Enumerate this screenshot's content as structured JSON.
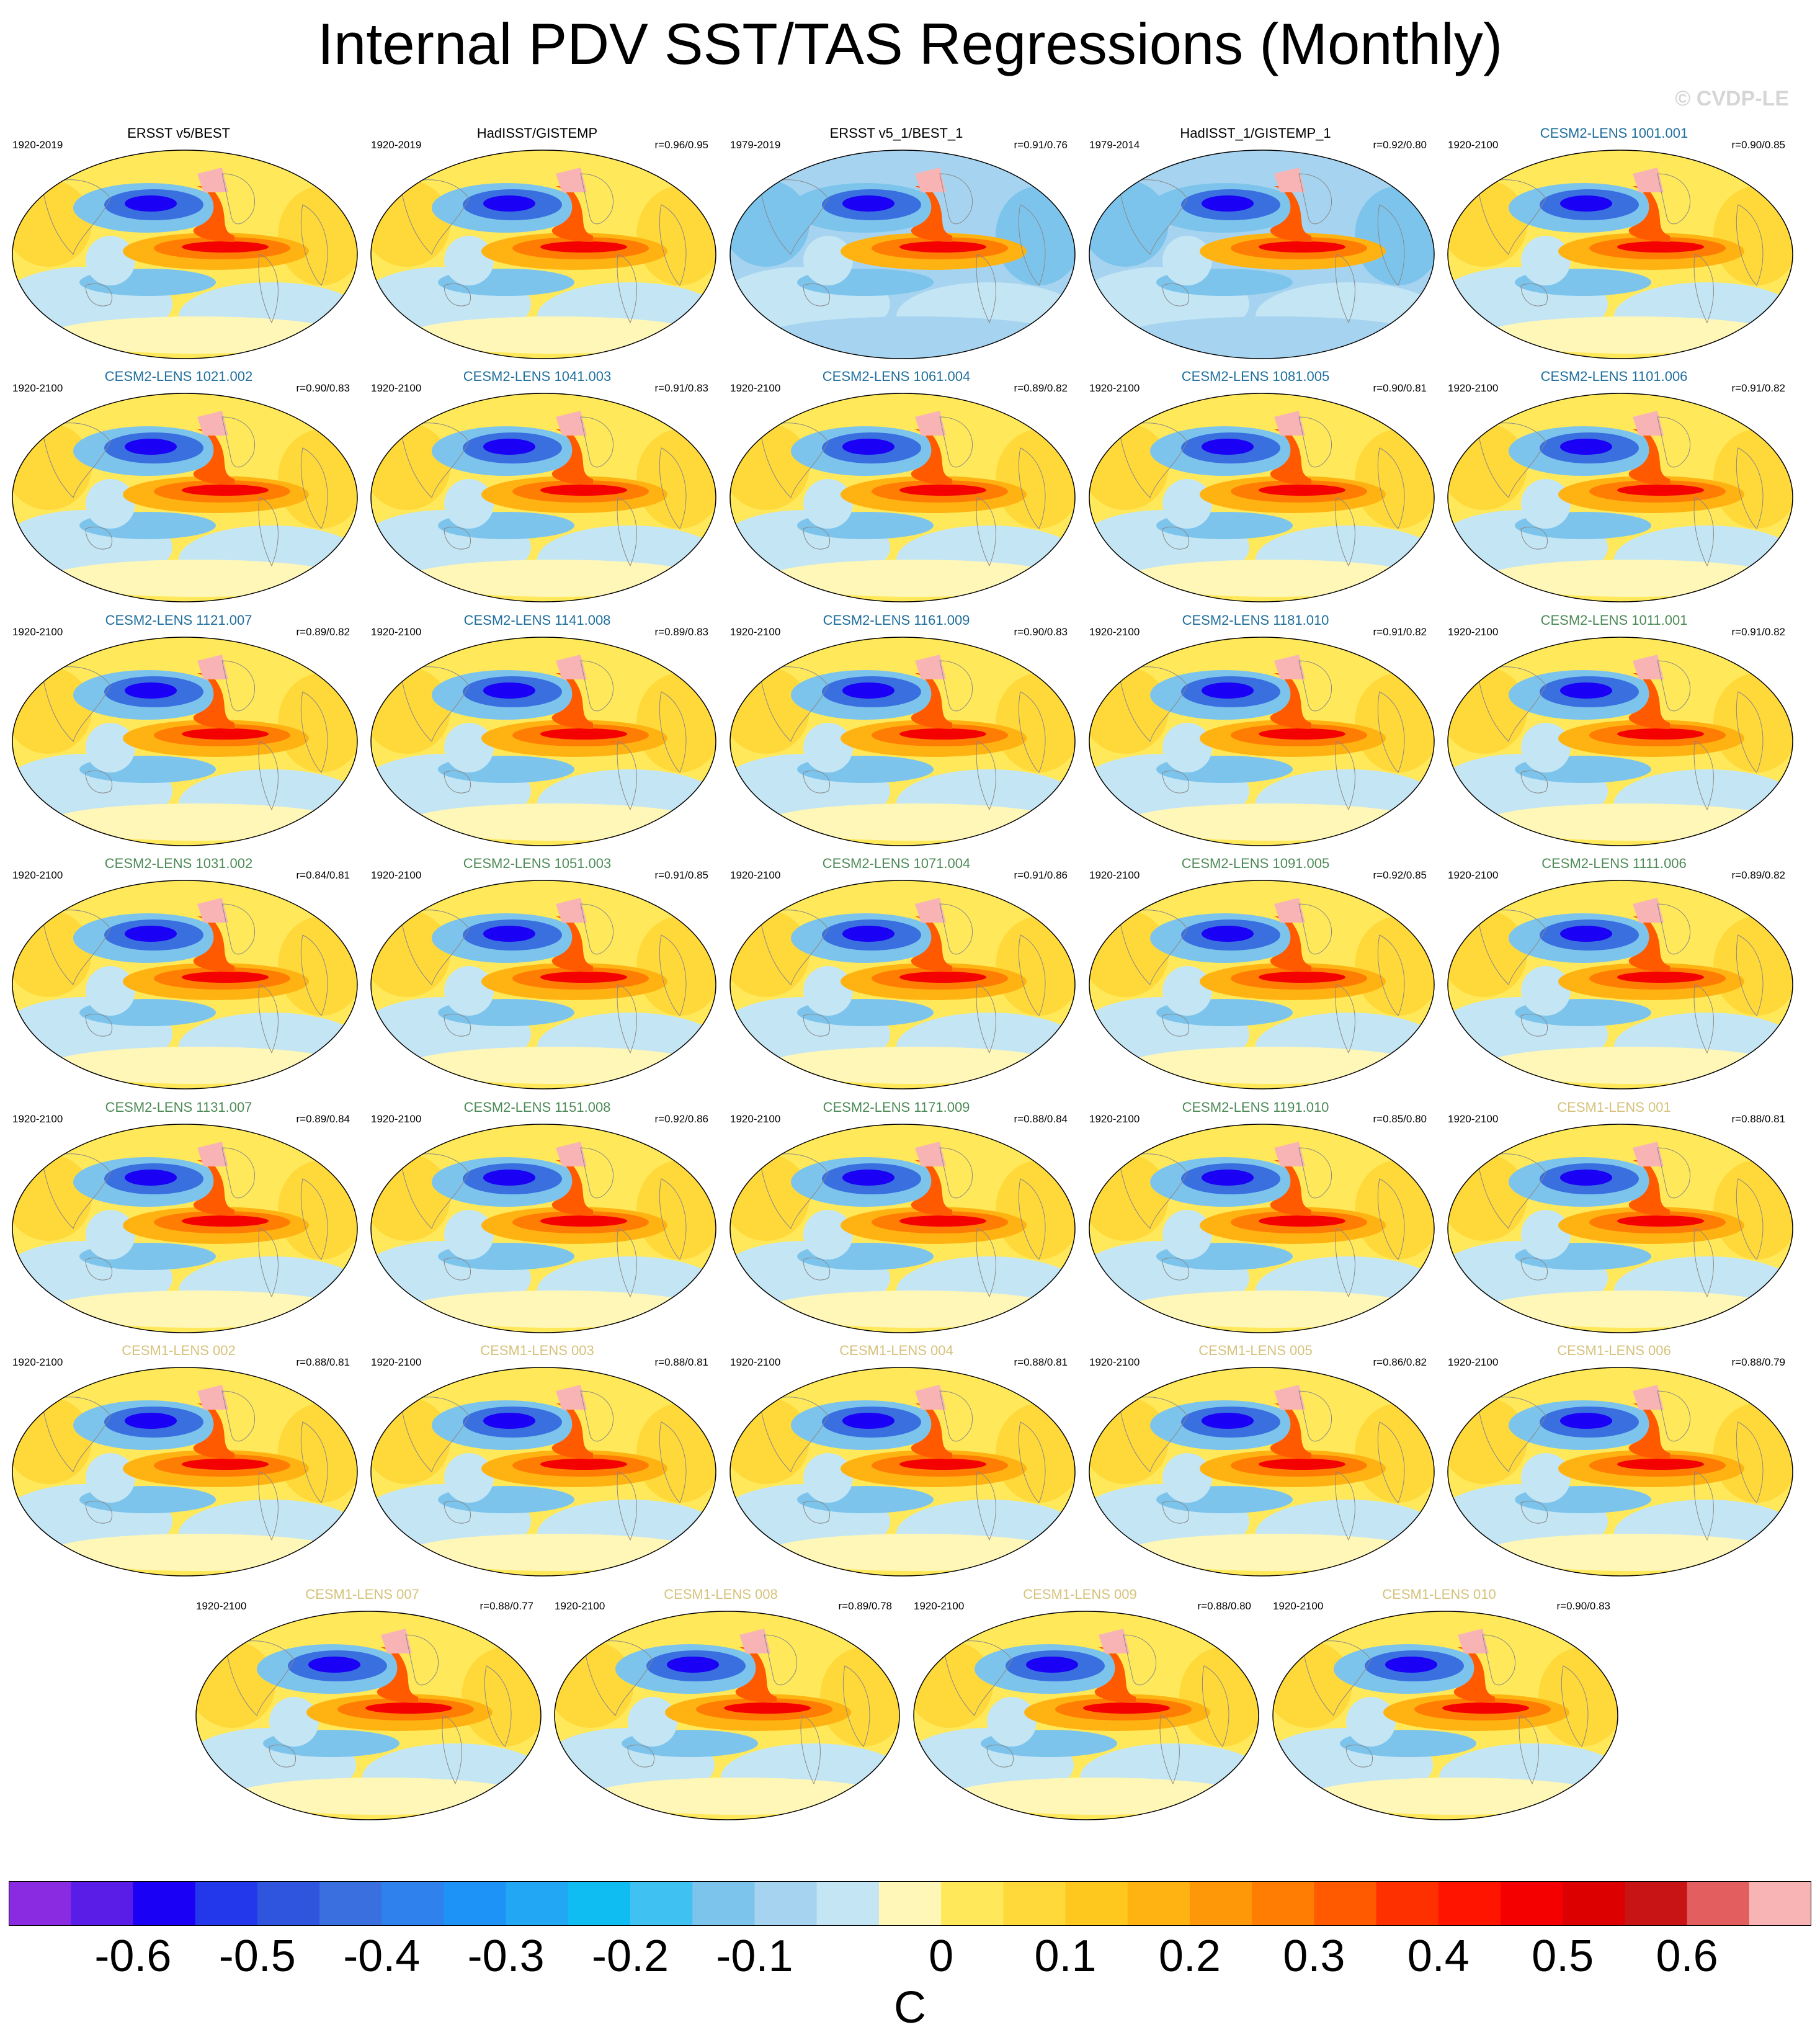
{
  "title": "Internal PDV SST/TAS Regressions (Monthly)",
  "watermark": "© CVDP-LE",
  "title_colors": {
    "obs": "#000000",
    "cesm2_a": "#1f6e9c",
    "cesm2_b": "#4d8a57",
    "cesm1": "#d6c27c"
  },
  "panels": [
    {
      "title": "ERSST v5/BEST",
      "period": "1920-2019",
      "corr": "",
      "group": "obs"
    },
    {
      "title": "HadISST/GISTEMP",
      "period": "1920-2019",
      "corr": "r=0.96/0.95",
      "group": "obs"
    },
    {
      "title": "ERSST v5_1/BEST_1",
      "period": "1979-2019",
      "corr": "r=0.91/0.76",
      "group": "obs"
    },
    {
      "title": "HadISST_1/GISTEMP_1",
      "period": "1979-2014",
      "corr": "r=0.92/0.80",
      "group": "obs"
    },
    {
      "title": "CESM2-LENS 1001.001",
      "period": "1920-2100",
      "corr": "r=0.90/0.85",
      "group": "cesm2_a"
    },
    {
      "title": "CESM2-LENS 1021.002",
      "period": "1920-2100",
      "corr": "r=0.90/0.83",
      "group": "cesm2_a"
    },
    {
      "title": "CESM2-LENS 1041.003",
      "period": "1920-2100",
      "corr": "r=0.91/0.83",
      "group": "cesm2_a"
    },
    {
      "title": "CESM2-LENS 1061.004",
      "period": "1920-2100",
      "corr": "r=0.89/0.82",
      "group": "cesm2_a"
    },
    {
      "title": "CESM2-LENS 1081.005",
      "period": "1920-2100",
      "corr": "r=0.90/0.81",
      "group": "cesm2_a"
    },
    {
      "title": "CESM2-LENS 1101.006",
      "period": "1920-2100",
      "corr": "r=0.91/0.82",
      "group": "cesm2_a"
    },
    {
      "title": "CESM2-LENS 1121.007",
      "period": "1920-2100",
      "corr": "r=0.89/0.82",
      "group": "cesm2_a"
    },
    {
      "title": "CESM2-LENS 1141.008",
      "period": "1920-2100",
      "corr": "r=0.89/0.83",
      "group": "cesm2_a"
    },
    {
      "title": "CESM2-LENS 1161.009",
      "period": "1920-2100",
      "corr": "r=0.90/0.83",
      "group": "cesm2_a"
    },
    {
      "title": "CESM2-LENS 1181.010",
      "period": "1920-2100",
      "corr": "r=0.91/0.82",
      "group": "cesm2_a"
    },
    {
      "title": "CESM2-LENS 1011.001",
      "period": "1920-2100",
      "corr": "r=0.91/0.82",
      "group": "cesm2_b"
    },
    {
      "title": "CESM2-LENS 1031.002",
      "period": "1920-2100",
      "corr": "r=0.84/0.81",
      "group": "cesm2_b"
    },
    {
      "title": "CESM2-LENS 1051.003",
      "period": "1920-2100",
      "corr": "r=0.91/0.85",
      "group": "cesm2_b"
    },
    {
      "title": "CESM2-LENS 1071.004",
      "period": "1920-2100",
      "corr": "r=0.91/0.86",
      "group": "cesm2_b"
    },
    {
      "title": "CESM2-LENS 1091.005",
      "period": "1920-2100",
      "corr": "r=0.92/0.85",
      "group": "cesm2_b"
    },
    {
      "title": "CESM2-LENS 1111.006",
      "period": "1920-2100",
      "corr": "r=0.89/0.82",
      "group": "cesm2_b"
    },
    {
      "title": "CESM2-LENS 1131.007",
      "period": "1920-2100",
      "corr": "r=0.89/0.84",
      "group": "cesm2_b"
    },
    {
      "title": "CESM2-LENS 1151.008",
      "period": "1920-2100",
      "corr": "r=0.92/0.86",
      "group": "cesm2_b"
    },
    {
      "title": "CESM2-LENS 1171.009",
      "period": "1920-2100",
      "corr": "r=0.88/0.84",
      "group": "cesm2_b"
    },
    {
      "title": "CESM2-LENS 1191.010",
      "period": "1920-2100",
      "corr": "r=0.85/0.80",
      "group": "cesm2_b"
    },
    {
      "title": "CESM1-LENS 001",
      "period": "1920-2100",
      "corr": "r=0.88/0.81",
      "group": "cesm1"
    },
    {
      "title": "CESM1-LENS 002",
      "period": "1920-2100",
      "corr": "r=0.88/0.81",
      "group": "cesm1"
    },
    {
      "title": "CESM1-LENS 003",
      "period": "1920-2100",
      "corr": "r=0.88/0.81",
      "group": "cesm1"
    },
    {
      "title": "CESM1-LENS 004",
      "period": "1920-2100",
      "corr": "r=0.88/0.81",
      "group": "cesm1"
    },
    {
      "title": "CESM1-LENS 005",
      "period": "1920-2100",
      "corr": "r=0.86/0.82",
      "group": "cesm1"
    },
    {
      "title": "CESM1-LENS 006",
      "period": "1920-2100",
      "corr": "r=0.88/0.79",
      "group": "cesm1"
    },
    {
      "title": "CESM1-LENS 007",
      "period": "1920-2100",
      "corr": "r=0.88/0.77",
      "group": "cesm1"
    },
    {
      "title": "CESM1-LENS 008",
      "period": "1920-2100",
      "corr": "r=0.89/0.78",
      "group": "cesm1"
    },
    {
      "title": "CESM1-LENS 009",
      "period": "1920-2100",
      "corr": "r=0.88/0.80",
      "group": "cesm1"
    },
    {
      "title": "CESM1-LENS 010",
      "period": "1920-2100",
      "corr": "r=0.90/0.83",
      "group": "cesm1"
    }
  ],
  "colorbar": {
    "colors": [
      "#8a2be2",
      "#5a1de8",
      "#1a00f5",
      "#2238ea",
      "#2f55de",
      "#3a6fdf",
      "#2f82ee",
      "#1e93f7",
      "#22a7f5",
      "#10bdf3",
      "#3fc2f2",
      "#7dc4ec",
      "#a6d4f0",
      "#c4e5f4",
      "#fff7b8",
      "#ffe95a",
      "#ffd83a",
      "#ffc81e",
      "#ffb312",
      "#ff9808",
      "#ff7d03",
      "#ff5a00",
      "#ff3000",
      "#ff1400",
      "#f50000",
      "#dc0000",
      "#c81414",
      "#e35e5e",
      "#f8b4b4"
    ],
    "labels": [
      "-0.6",
      "-0.5",
      "-0.4",
      "-0.3",
      "-0.2",
      "-0.1",
      "0",
      "0.1",
      "0.2",
      "0.3",
      "0.4",
      "0.5",
      "0.6"
    ],
    "units": "C"
  }
}
